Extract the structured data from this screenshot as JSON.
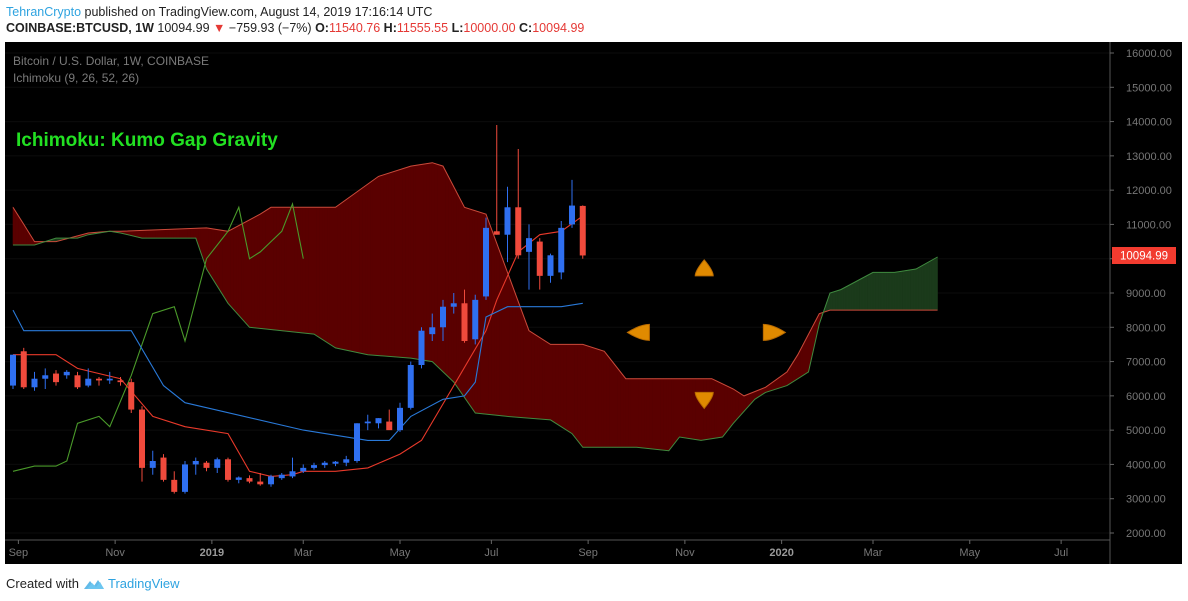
{
  "header": {
    "author": "TehranCrypto",
    "published": "published on TradingView.com, August 14, 2019 17:16:14 UTC",
    "symbol": "COINBASE:BTCUSD, 1W",
    "last": "10094.99",
    "change": "−759.93 (−7%)",
    "open_label": "O:",
    "open": "11540.76",
    "high_label": "H:",
    "high": "11555.55",
    "low_label": "L:",
    "low": "10000.00",
    "close_label": "C:",
    "close": "10094.99"
  },
  "footer": {
    "created_with": "Created with",
    "brand": "TradingView"
  },
  "colors": {
    "up": "#2f6ff0",
    "down": "#f04a3c",
    "tenkan": "#2979d8",
    "kijun": "#e8392a",
    "chikou": "#4a9a2a",
    "cloud_bear": "#5a0000",
    "cloud_bull": "#1b3a1b",
    "title": "#22e022",
    "marker": "#e08a00"
  },
  "chart_data": {
    "type": "candlestick",
    "title": "Bitcoin / U.S. Dollar, 1W, COINBASE",
    "indicator": "Ichimoku (9, 26, 52, 26)",
    "annotation": "Ichimoku: Kumo Gap Gravity",
    "last_price_label": "10094.99",
    "ylim": [
      2000,
      16000
    ],
    "y_ticks": [
      "16000.00",
      "15000.00",
      "14000.00",
      "13000.00",
      "12000.00",
      "11000.00",
      "10000.00",
      "9000.00",
      "8000.00",
      "7000.00",
      "6000.00",
      "5000.00",
      "4000.00",
      "3000.00",
      "2000.00"
    ],
    "x_ticks": [
      {
        "label": "Sep",
        "w": 0.5
      },
      {
        "label": "Nov",
        "w": 9.5
      },
      {
        "label": "2019",
        "w": 18.5
      },
      {
        "label": "Mar",
        "w": 27
      },
      {
        "label": "May",
        "w": 36
      },
      {
        "label": "Jul",
        "w": 44.5
      },
      {
        "label": "Sep",
        "w": 53.5
      },
      {
        "label": "Nov",
        "w": 62.5
      },
      {
        "label": "2020",
        "w": 71.5
      },
      {
        "label": "Mar",
        "w": 80
      },
      {
        "label": "May",
        "w": 89
      },
      {
        "label": "Jul",
        "w": 97.5
      }
    ],
    "candles": [
      {
        "o": 6300,
        "h": 7200,
        "l": 6200,
        "c": 7200
      },
      {
        "o": 7300,
        "h": 7400,
        "l": 6200,
        "c": 6250
      },
      {
        "o": 6250,
        "h": 6700,
        "l": 6150,
        "c": 6500
      },
      {
        "o": 6500,
        "h": 6800,
        "l": 6200,
        "c": 6600
      },
      {
        "o": 6650,
        "h": 6750,
        "l": 6300,
        "c": 6400
      },
      {
        "o": 6600,
        "h": 6750,
        "l": 6500,
        "c": 6700
      },
      {
        "o": 6600,
        "h": 6700,
        "l": 6200,
        "c": 6250
      },
      {
        "o": 6300,
        "h": 6800,
        "l": 6250,
        "c": 6500
      },
      {
        "o": 6500,
        "h": 6550,
        "l": 6300,
        "c": 6450
      },
      {
        "o": 6450,
        "h": 6700,
        "l": 6350,
        "c": 6500
      },
      {
        "o": 6450,
        "h": 6550,
        "l": 6300,
        "c": 6400
      },
      {
        "o": 6400,
        "h": 6500,
        "l": 5500,
        "c": 5600
      },
      {
        "o": 5600,
        "h": 5700,
        "l": 3500,
        "c": 3900
      },
      {
        "o": 3900,
        "h": 4400,
        "l": 3700,
        "c": 4100
      },
      {
        "o": 4200,
        "h": 4300,
        "l": 3500,
        "c": 3550
      },
      {
        "o": 3550,
        "h": 3800,
        "l": 3150,
        "c": 3200
      },
      {
        "o": 3200,
        "h": 4100,
        "l": 3150,
        "c": 4000
      },
      {
        "o": 4000,
        "h": 4200,
        "l": 3700,
        "c": 4100
      },
      {
        "o": 4050,
        "h": 4100,
        "l": 3800,
        "c": 3900
      },
      {
        "o": 3900,
        "h": 4200,
        "l": 3750,
        "c": 4150
      },
      {
        "o": 4150,
        "h": 4200,
        "l": 3500,
        "c": 3550
      },
      {
        "o": 3550,
        "h": 3650,
        "l": 3450,
        "c": 3620
      },
      {
        "o": 3600,
        "h": 3680,
        "l": 3450,
        "c": 3500
      },
      {
        "o": 3500,
        "h": 3750,
        "l": 3380,
        "c": 3420
      },
      {
        "o": 3420,
        "h": 3700,
        "l": 3350,
        "c": 3650
      },
      {
        "o": 3600,
        "h": 3750,
        "l": 3550,
        "c": 3700
      },
      {
        "o": 3650,
        "h": 4200,
        "l": 3600,
        "c": 3800
      },
      {
        "o": 3800,
        "h": 4000,
        "l": 3750,
        "c": 3900
      },
      {
        "o": 3900,
        "h": 4050,
        "l": 3850,
        "c": 3980
      },
      {
        "o": 3980,
        "h": 4100,
        "l": 3900,
        "c": 4050
      },
      {
        "o": 4020,
        "h": 4100,
        "l": 3950,
        "c": 4080
      },
      {
        "o": 4050,
        "h": 4250,
        "l": 3950,
        "c": 4150
      },
      {
        "o": 4100,
        "h": 5200,
        "l": 4050,
        "c": 5200
      },
      {
        "o": 5200,
        "h": 5450,
        "l": 5000,
        "c": 5250
      },
      {
        "o": 5200,
        "h": 5350,
        "l": 5050,
        "c": 5350
      },
      {
        "o": 5250,
        "h": 5600,
        "l": 5050,
        "c": 5000
      },
      {
        "o": 5000,
        "h": 5800,
        "l": 4950,
        "c": 5650
      },
      {
        "o": 5650,
        "h": 7000,
        "l": 5600,
        "c": 6900
      },
      {
        "o": 6900,
        "h": 8000,
        "l": 6800,
        "c": 7900
      },
      {
        "o": 7800,
        "h": 8400,
        "l": 7600,
        "c": 8000
      },
      {
        "o": 8000,
        "h": 8800,
        "l": 7600,
        "c": 8600
      },
      {
        "o": 8600,
        "h": 9000,
        "l": 8400,
        "c": 8700
      },
      {
        "o": 8700,
        "h": 9100,
        "l": 7550,
        "c": 7600
      },
      {
        "o": 7650,
        "h": 8950,
        "l": 7500,
        "c": 8800
      },
      {
        "o": 8900,
        "h": 11200,
        "l": 8800,
        "c": 10900
      },
      {
        "o": 10800,
        "h": 13900,
        "l": 10700,
        "c": 10700
      },
      {
        "o": 10700,
        "h": 12100,
        "l": 9900,
        "c": 11500
      },
      {
        "o": 11500,
        "h": 13200,
        "l": 10000,
        "c": 10100
      },
      {
        "o": 10200,
        "h": 11000,
        "l": 9100,
        "c": 10600
      },
      {
        "o": 10500,
        "h": 10600,
        "l": 9100,
        "c": 9500
      },
      {
        "o": 9500,
        "h": 10150,
        "l": 9300,
        "c": 10100
      },
      {
        "o": 9600,
        "h": 11100,
        "l": 9400,
        "c": 10900
      },
      {
        "o": 11000,
        "h": 12300,
        "l": 10900,
        "c": 11550
      },
      {
        "o": 11540,
        "h": 11556,
        "l": 10000,
        "c": 10095
      }
    ],
    "tenkan": [
      [
        0,
        8500
      ],
      [
        1,
        7900
      ],
      [
        11,
        7900
      ],
      [
        14,
        6300
      ],
      [
        16,
        5800
      ],
      [
        27,
        5000
      ],
      [
        33,
        4700
      ],
      [
        35,
        4700
      ],
      [
        37,
        5400
      ],
      [
        40,
        5900
      ],
      [
        42,
        6000
      ],
      [
        43,
        6400
      ],
      [
        44,
        8300
      ],
      [
        46,
        8600
      ],
      [
        47,
        8600
      ],
      [
        50,
        8600
      ],
      [
        51,
        8600
      ],
      [
        53,
        8700
      ]
    ],
    "kijun": [
      [
        0,
        7200
      ],
      [
        4,
        7200
      ],
      [
        6,
        6800
      ],
      [
        10,
        6500
      ],
      [
        13,
        5400
      ],
      [
        16,
        5100
      ],
      [
        20,
        4900
      ],
      [
        22,
        3800
      ],
      [
        24,
        3650
      ],
      [
        26,
        3700
      ],
      [
        27,
        3800
      ],
      [
        30,
        3800
      ],
      [
        33,
        3900
      ],
      [
        36,
        4300
      ],
      [
        38,
        4700
      ],
      [
        41,
        6300
      ],
      [
        44,
        7900
      ],
      [
        45,
        8800
      ],
      [
        47,
        10200
      ],
      [
        49,
        10700
      ],
      [
        51,
        10800
      ],
      [
        53,
        11250
      ]
    ],
    "chikou": [
      [
        0,
        3800
      ],
      [
        2,
        3950
      ],
      [
        4,
        3950
      ],
      [
        5,
        4100
      ],
      [
        6,
        5200
      ],
      [
        8,
        5400
      ],
      [
        9,
        5100
      ],
      [
        11,
        6600
      ],
      [
        12,
        7500
      ],
      [
        13,
        8400
      ],
      [
        15,
        8600
      ],
      [
        16,
        7600
      ],
      [
        18,
        10000
      ],
      [
        20,
        10800
      ],
      [
        21,
        11500
      ],
      [
        22,
        10000
      ],
      [
        23,
        10200
      ],
      [
        24,
        10500
      ],
      [
        25,
        10800
      ],
      [
        26,
        11600
      ],
      [
        27,
        10000
      ]
    ],
    "kumo": {
      "span_a": [
        [
          0,
          11500
        ],
        [
          1,
          11000
        ],
        [
          2,
          10500
        ],
        [
          4,
          10500
        ],
        [
          7,
          10750
        ],
        [
          9,
          10800
        ],
        [
          10,
          10800
        ],
        [
          18,
          10900
        ],
        [
          20,
          10800
        ],
        [
          23,
          11300
        ],
        [
          24,
          11500
        ],
        [
          30,
          11500
        ],
        [
          34,
          12400
        ],
        [
          37,
          12700
        ],
        [
          39,
          12800
        ],
        [
          40,
          12700
        ],
        [
          42,
          11500
        ],
        [
          44,
          11300
        ],
        [
          46,
          9600
        ],
        [
          48,
          7900
        ],
        [
          50,
          7500
        ],
        [
          53,
          7500
        ],
        [
          55,
          7300
        ],
        [
          57,
          6500
        ],
        [
          65,
          6500
        ],
        [
          67,
          6200
        ],
        [
          68,
          6000
        ],
        [
          70,
          6250
        ],
        [
          72,
          6700
        ],
        [
          73,
          7200
        ],
        [
          75,
          8400
        ],
        [
          76,
          8500
        ],
        [
          86,
          8500
        ]
      ],
      "span_b": [
        [
          0,
          10400
        ],
        [
          2,
          10400
        ],
        [
          4,
          10600
        ],
        [
          6,
          10600
        ],
        [
          7,
          10700
        ],
        [
          9,
          10800
        ],
        [
          10,
          10750
        ],
        [
          12,
          10600
        ],
        [
          14,
          10600
        ],
        [
          17,
          10600
        ],
        [
          18,
          9700
        ],
        [
          20,
          8700
        ],
        [
          22,
          8000
        ],
        [
          28,
          7800
        ],
        [
          30,
          7400
        ],
        [
          33,
          7200
        ],
        [
          37,
          7100
        ],
        [
          39,
          7000
        ],
        [
          41,
          6400
        ],
        [
          43,
          5500
        ],
        [
          46,
          5400
        ],
        [
          50,
          5300
        ],
        [
          52,
          4900
        ],
        [
          53,
          4500
        ],
        [
          58,
          4500
        ],
        [
          61,
          4400
        ],
        [
          62,
          4800
        ],
        [
          64,
          4700
        ],
        [
          66,
          4800
        ],
        [
          67,
          5200
        ],
        [
          69,
          5900
        ],
        [
          70,
          6100
        ],
        [
          72,
          6300
        ],
        [
          74,
          6700
        ],
        [
          75,
          8100
        ],
        [
          76,
          9000
        ],
        [
          77,
          9100
        ],
        [
          80,
          9600
        ],
        [
          82,
          9600
        ],
        [
          84,
          9700
        ],
        [
          86,
          10050
        ]
      ]
    },
    "markers": [
      {
        "shape": "up",
        "w": 64.3,
        "v": 9500
      },
      {
        "shape": "down",
        "w": 64.3,
        "v": 6100
      },
      {
        "shape": "left",
        "w": 59.2,
        "v": 7850
      },
      {
        "shape": "right",
        "w": 69.8,
        "v": 7850
      }
    ]
  }
}
